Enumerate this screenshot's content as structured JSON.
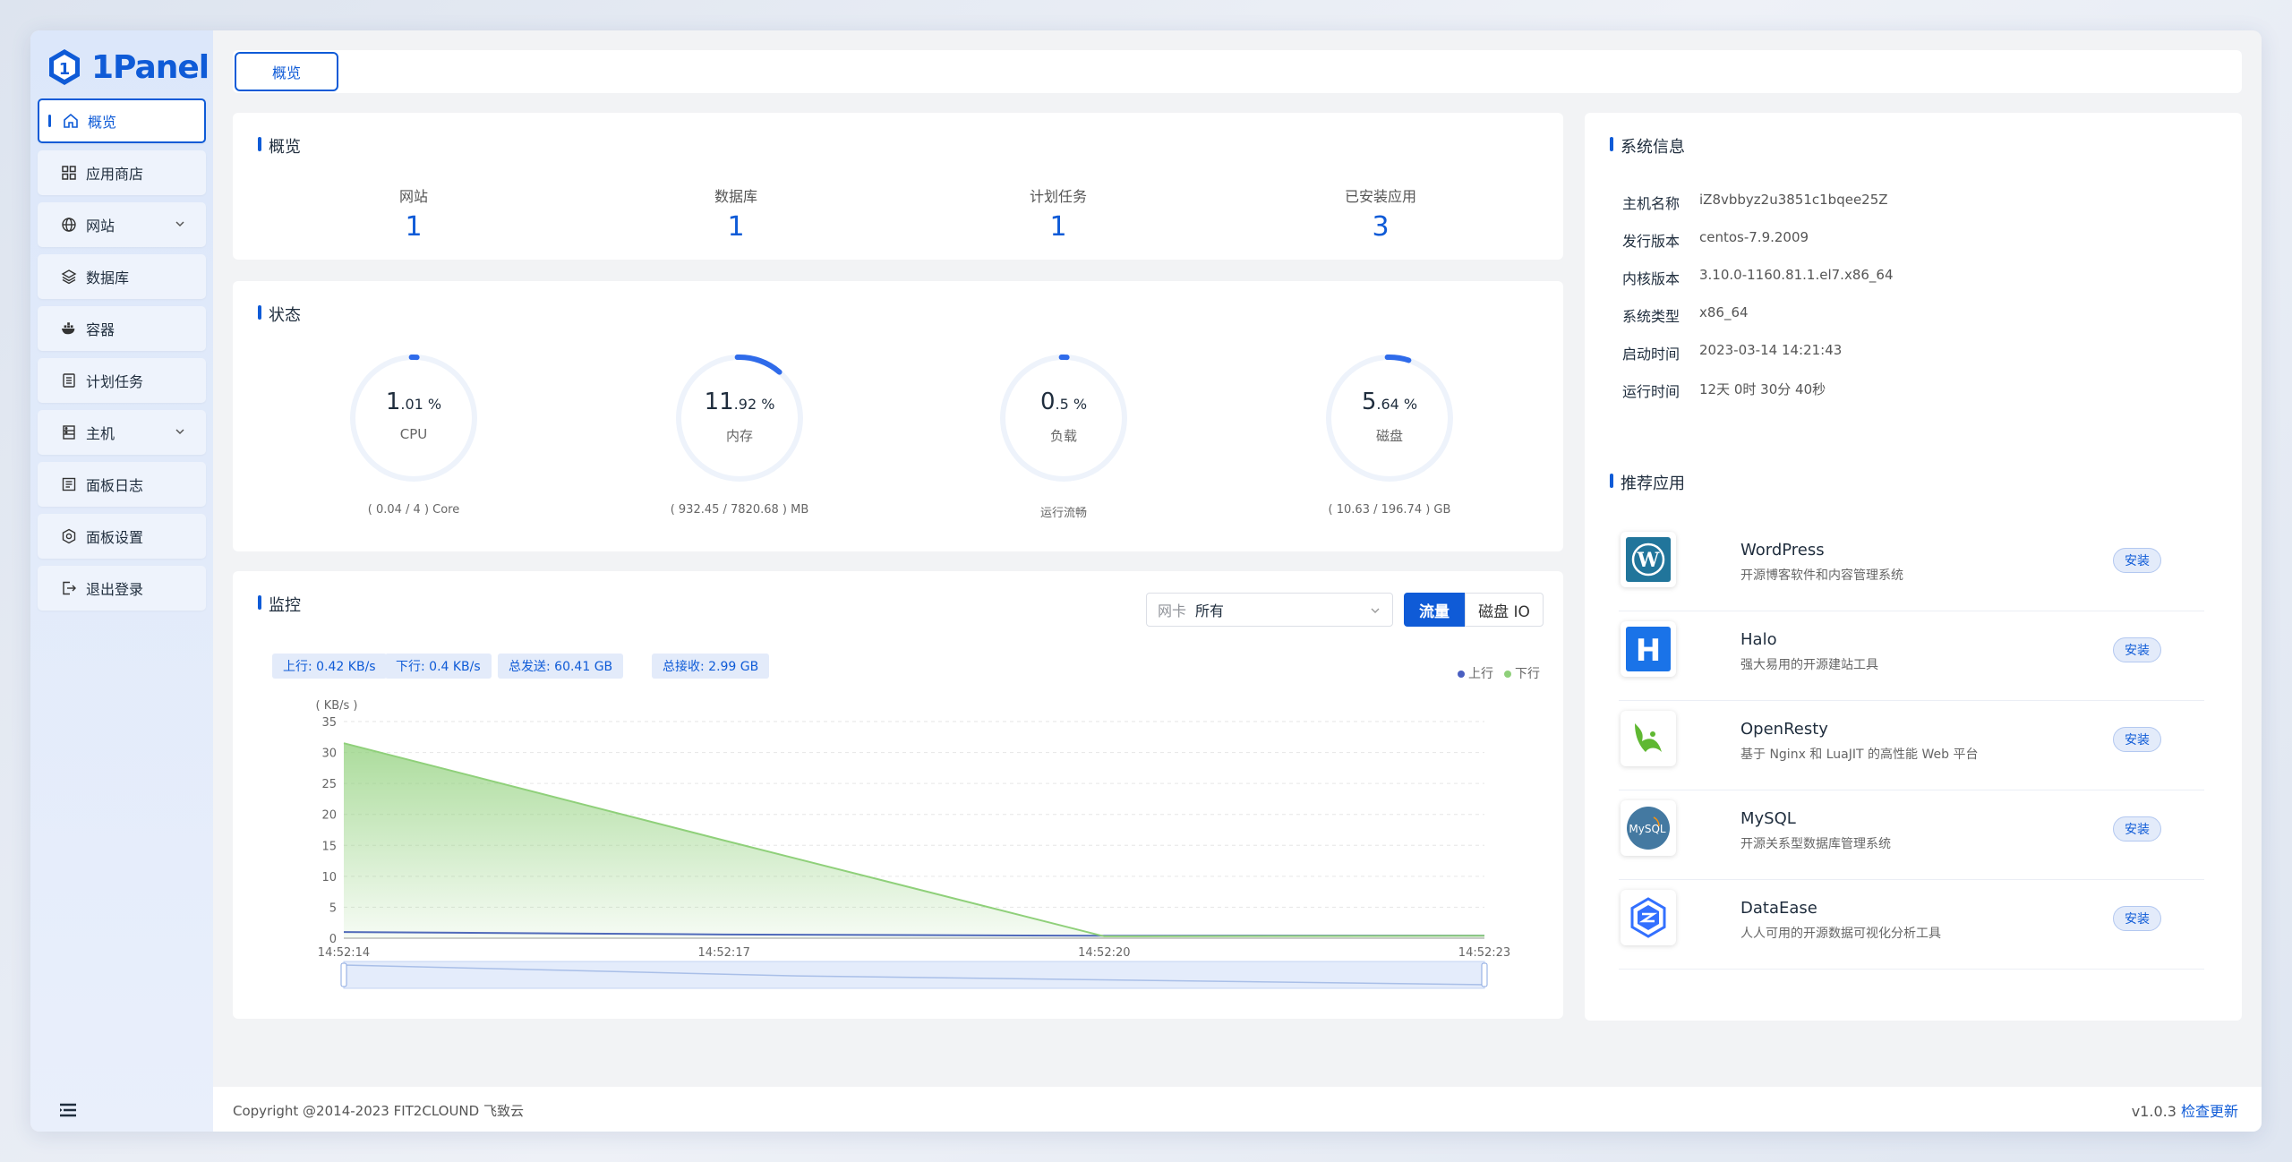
{
  "brand": {
    "name": "1Panel"
  },
  "sidebar": {
    "items": [
      {
        "label": "概览",
        "icon": "home-icon",
        "active": true
      },
      {
        "label": "应用商店",
        "icon": "grid-icon"
      },
      {
        "label": "网站",
        "icon": "globe-icon",
        "expandable": true
      },
      {
        "label": "数据库",
        "icon": "layers-icon"
      },
      {
        "label": "容器",
        "icon": "docker-icon"
      },
      {
        "label": "计划任务",
        "icon": "task-icon"
      },
      {
        "label": "主机",
        "icon": "host-icon",
        "expandable": true
      },
      {
        "label": "面板日志",
        "icon": "log-icon"
      },
      {
        "label": "面板设置",
        "icon": "gear-icon"
      },
      {
        "label": "退出登录",
        "icon": "logout-icon"
      }
    ]
  },
  "tabs": [
    {
      "label": "概览"
    }
  ],
  "overview": {
    "title": "概览",
    "items": [
      {
        "label": "网站",
        "value": "1"
      },
      {
        "label": "数据库",
        "value": "1"
      },
      {
        "label": "计划任务",
        "value": "1"
      },
      {
        "label": "已安装应用",
        "value": "3"
      }
    ]
  },
  "status": {
    "title": "状态",
    "gauges": [
      {
        "int": "1",
        "dec": ".01",
        "unit": " %",
        "name": "CPU",
        "foot": "( 0.04 / 4 ) Core",
        "percent": 1.01
      },
      {
        "int": "11",
        "dec": ".92",
        "unit": " %",
        "name": "内存",
        "foot": "( 932.45 / 7820.68 ) MB",
        "percent": 11.92
      },
      {
        "int": "0",
        "dec": ".5",
        "unit": " %",
        "name": "负载",
        "foot": "运行流畅",
        "percent": 0.5
      },
      {
        "int": "5",
        "dec": ".64",
        "unit": " %",
        "name": "磁盘",
        "foot": "( 10.63 / 196.74 ) GB",
        "percent": 5.64
      }
    ],
    "accent": "#2f6bea"
  },
  "monitor": {
    "title": "监控",
    "select_prefix": "网卡",
    "select_value": "所有",
    "seg_on": "流量",
    "seg_off": "磁盘 IO",
    "badges": [
      "上行: 0.42 KB/s",
      "下行: 0.4 KB/s",
      "总发送: 60.41 GB",
      "总接收: 2.99 GB"
    ]
  },
  "chart_data": {
    "type": "area",
    "ylabel": "( KB/s )",
    "ylim": [
      0,
      35
    ],
    "yticks": [
      0,
      5,
      10,
      15,
      20,
      25,
      30,
      35
    ],
    "x": [
      "14:52:14",
      "14:52:17",
      "14:52:20",
      "14:52:23"
    ],
    "series": [
      {
        "name": "上行",
        "color": "#4a5fc1",
        "values": [
          1,
          0.6,
          0.4,
          0.42
        ]
      },
      {
        "name": "下行",
        "color": "#8fd07a",
        "values": [
          31.5,
          15.8,
          0.3,
          0.4
        ]
      }
    ],
    "legend": "top-right",
    "grid": true
  },
  "sysinfo": {
    "title": "系统信息",
    "rows": [
      {
        "k": "主机名称",
        "v": "iZ8vbbyz2u3851c1bqee25Z"
      },
      {
        "k": "发行版本",
        "v": "centos-7.9.2009"
      },
      {
        "k": "内核版本",
        "v": "3.10.0-1160.81.1.el7.x86_64"
      },
      {
        "k": "系统类型",
        "v": "x86_64"
      },
      {
        "k": "启动时间",
        "v": "2023-03-14 14:21:43"
      },
      {
        "k": "运行时间",
        "v": "12天 0时 30分 40秒"
      }
    ]
  },
  "apps": {
    "title": "推荐应用",
    "install_label": "安装",
    "items": [
      {
        "name": "WordPress",
        "desc": "开源博客软件和内容管理系统",
        "icon": "wordpress-icon"
      },
      {
        "name": "Halo",
        "desc": "强大易用的开源建站工具",
        "icon": "halo-icon"
      },
      {
        "name": "OpenResty",
        "desc": "基于 Nginx 和 LuaJIT 的高性能 Web 平台",
        "icon": "openresty-icon"
      },
      {
        "name": "MySQL",
        "desc": "开源关系型数据库管理系统",
        "icon": "mysql-icon"
      },
      {
        "name": "DataEase",
        "desc": "人人可用的开源数据可视化分析工具",
        "icon": "dataease-icon"
      }
    ]
  },
  "footer": {
    "copyright": "Copyright @2014-2023 FIT2CLOUND 飞致云",
    "version": "v1.0.3",
    "update_link": "检查更新"
  }
}
